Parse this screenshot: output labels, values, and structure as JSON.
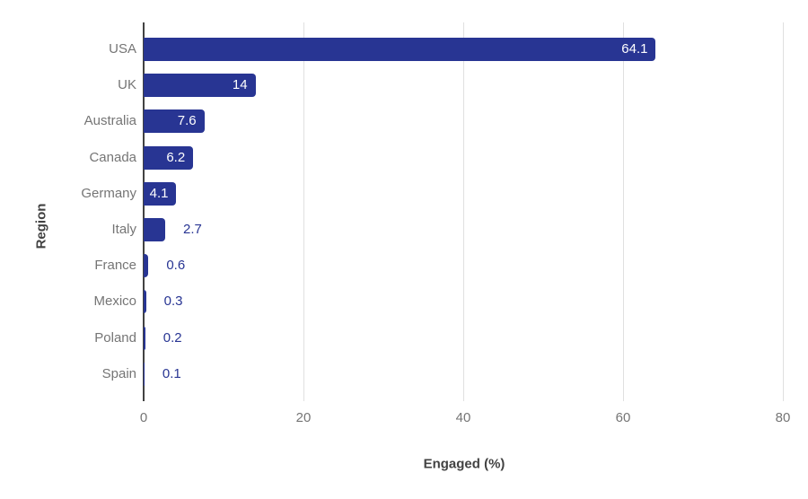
{
  "chart_data": {
    "type": "bar",
    "orientation": "horizontal",
    "title": "",
    "xlabel": "Engaged (%)",
    "ylabel": "Region",
    "categories": [
      "USA",
      "UK",
      "Australia",
      "Canada",
      "Germany",
      "Italy",
      "France",
      "Mexico",
      "Poland",
      "Spain"
    ],
    "values": [
      64.1,
      14,
      7.6,
      6.2,
      4.1,
      2.7,
      0.6,
      0.3,
      0.2,
      0.1
    ],
    "value_labels": [
      "64.1",
      "14",
      "7.6",
      "6.2",
      "4.1",
      "2.7",
      "0.6",
      "0.3",
      "0.2",
      "0.1"
    ],
    "xlim": [
      0,
      80
    ],
    "x_ticks": [
      "0",
      "20",
      "40",
      "60",
      "80"
    ],
    "x_tick_values": [
      0,
      20,
      40,
      60,
      80
    ],
    "grid": true,
    "legend": "none",
    "bar_color": "#283593",
    "label_inside_color": "#ffffff",
    "label_outside_color": "#283593",
    "axis_text_color": "#757575",
    "axis_title_color": "#424242",
    "gridline_color": "#e0e0e0",
    "axis_line_color": "#424242",
    "background_color": "#ffffff"
  }
}
